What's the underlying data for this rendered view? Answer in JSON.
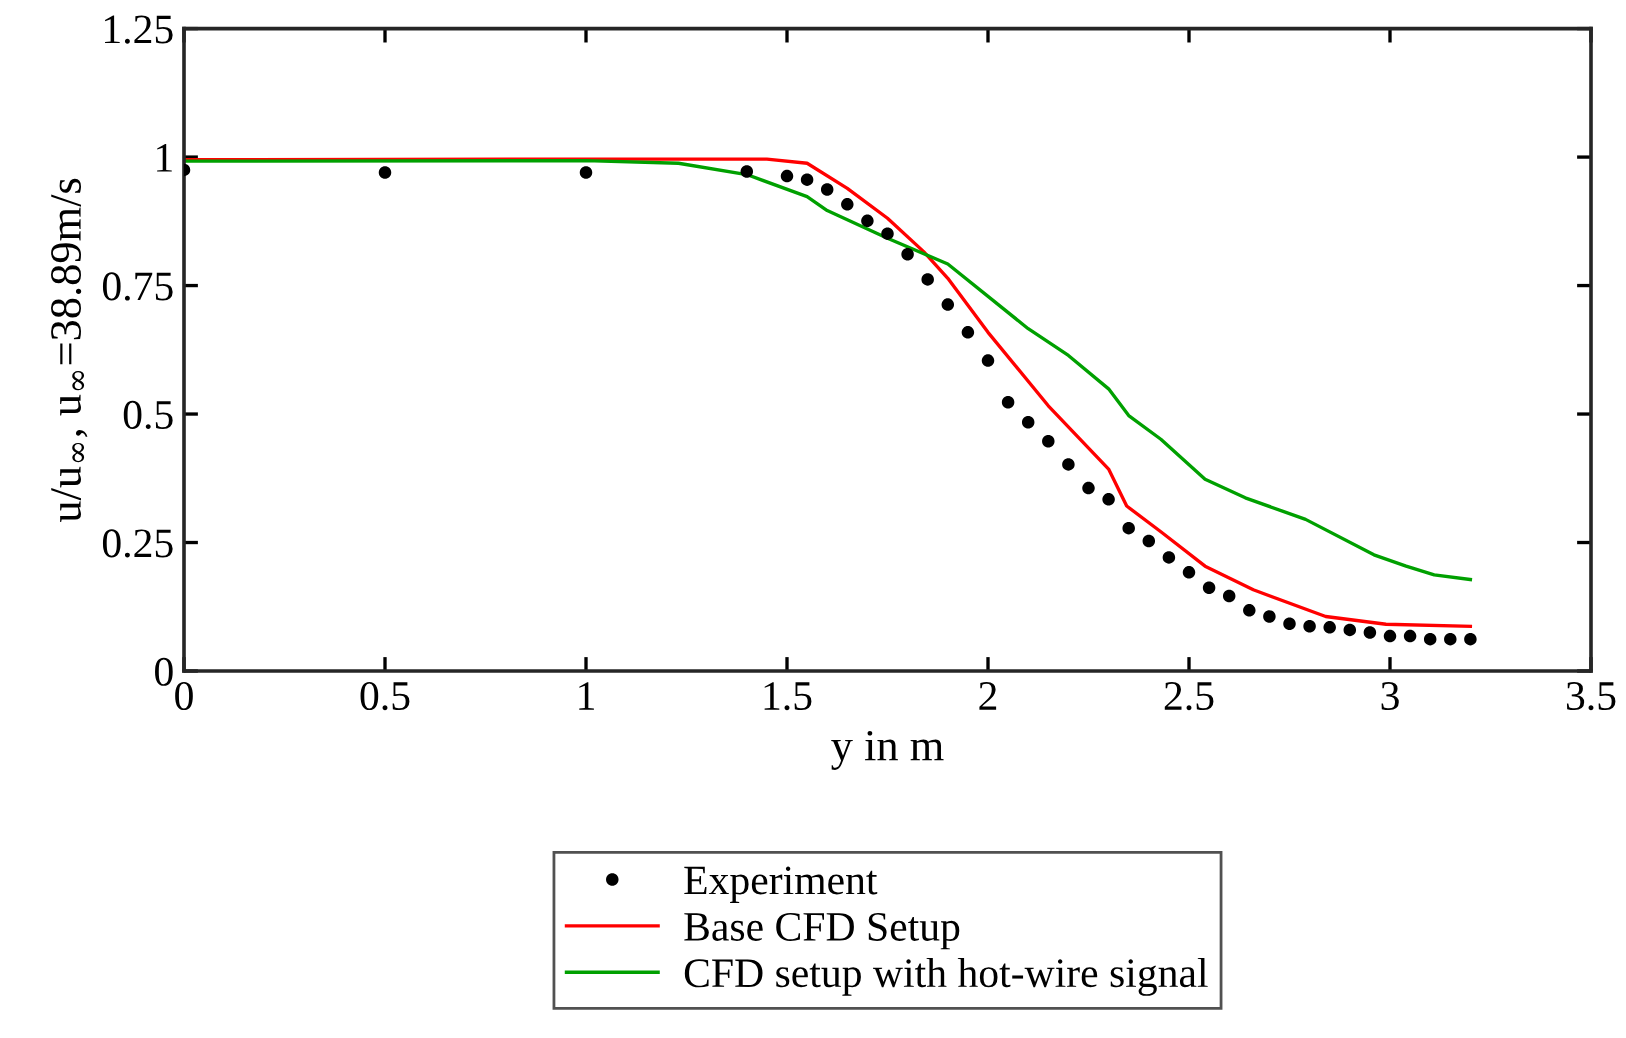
{
  "chart_data": {
    "type": "line",
    "xlabel": "y in m",
    "ylabel": "u/u$_{∞}$, u$_{∞}$=38.89m/s",
    "xlim": [
      0,
      3.5
    ],
    "xticks": [
      0,
      0.5,
      1,
      1.5,
      2,
      2.5,
      3,
      3.5
    ],
    "ylim": [
      0,
      1.25
    ],
    "yticks": [
      0,
      0.25,
      0.5,
      0.75,
      1,
      1.25
    ],
    "grid": false,
    "legend": "bottom",
    "series": [
      {
        "name": "Experiment",
        "type": "scatter",
        "marker": "circle",
        "color": "#000000",
        "x": [
          0,
          0.5,
          1,
          1.4,
          1.5,
          1.55,
          1.6,
          1.65,
          1.7,
          1.75,
          1.8,
          1.85,
          1.9,
          1.95,
          2.0,
          2.05,
          2.1,
          2.15,
          2.2,
          2.25,
          2.3,
          2.35,
          2.4,
          2.45,
          2.5,
          2.55,
          2.6,
          2.65,
          2.7,
          2.75,
          2.8,
          2.85,
          2.9,
          2.95,
          3.0,
          3.05,
          3.1,
          3.15,
          3.2
        ],
        "values": [
          0.975,
          0.97,
          0.97,
          0.972,
          0.963,
          0.956,
          0.937,
          0.908,
          0.876,
          0.851,
          0.811,
          0.762,
          0.713,
          0.659,
          0.604,
          0.523,
          0.484,
          0.447,
          0.402,
          0.356,
          0.334,
          0.278,
          0.253,
          0.221,
          0.192,
          0.162,
          0.146,
          0.118,
          0.106,
          0.092,
          0.087,
          0.085,
          0.08,
          0.075,
          0.068,
          0.068,
          0.062,
          0.062,
          0.062
        ]
      },
      {
        "name": "Base CFD Setup",
        "color": "#ff0000",
        "x": [
          0,
          1.0,
          1.45,
          1.55,
          1.65,
          1.75,
          1.84,
          1.9,
          2.0,
          2.15,
          2.3,
          2.345,
          2.43,
          2.54,
          2.66,
          2.84,
          2.99,
          3.2
        ],
        "values": [
          0.995,
          0.996,
          0.996,
          0.988,
          0.939,
          0.881,
          0.816,
          0.764,
          0.659,
          0.516,
          0.393,
          0.321,
          0.271,
          0.204,
          0.158,
          0.106,
          0.091,
          0.087
        ]
      },
      {
        "name": "CFD setup with hot-wire signal",
        "color": "#00a000",
        "x": [
          0,
          1.0,
          1.23,
          1.4,
          1.55,
          1.6,
          1.75,
          1.9,
          2.1,
          2.2,
          2.3,
          2.35,
          2.43,
          2.54,
          2.64,
          2.79,
          2.96,
          3.04,
          3.11,
          3.2
        ],
        "values": [
          0.992,
          0.993,
          0.988,
          0.966,
          0.923,
          0.896,
          0.842,
          0.792,
          0.666,
          0.614,
          0.549,
          0.497,
          0.451,
          0.373,
          0.337,
          0.295,
          0.226,
          0.204,
          0.187,
          0.178
        ]
      }
    ]
  }
}
